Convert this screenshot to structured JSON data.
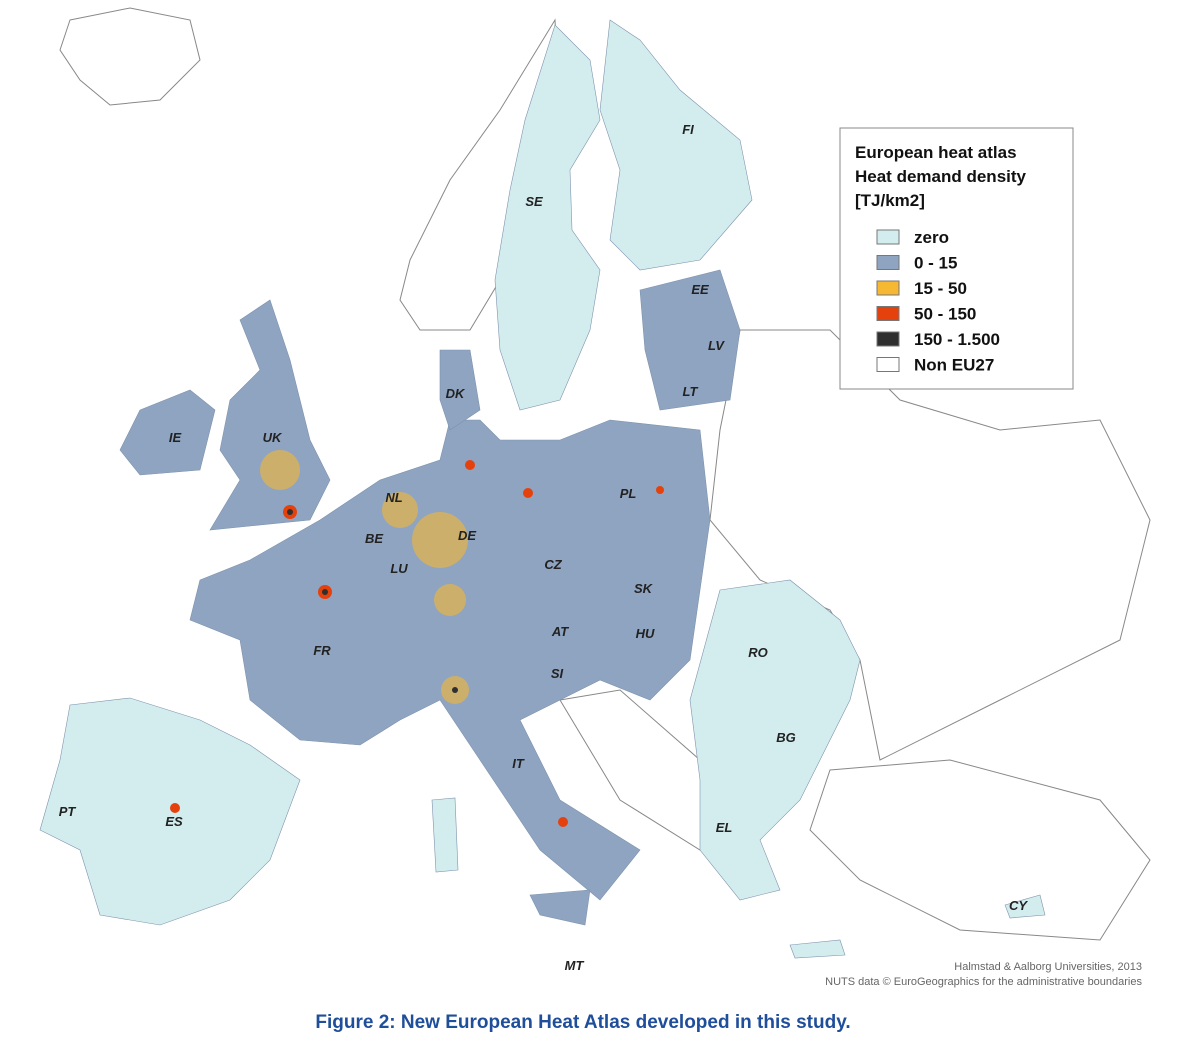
{
  "legend": {
    "title_lines": [
      "European heat atlas",
      "Heat demand density",
      "[TJ/km2]"
    ],
    "items": [
      {
        "label": "zero",
        "color": "#d3edef"
      },
      {
        "label": "0 - 15",
        "color": "#8ea4c0"
      },
      {
        "label": "15 - 50",
        "color": "#f6b733"
      },
      {
        "label": "50 - 150",
        "color": "#e5410d"
      },
      {
        "label": "150 - 1.500",
        "color": "#2f2f2f"
      },
      {
        "label": "Non EU27",
        "color": "#ffffff"
      }
    ]
  },
  "country_labels": [
    "FI",
    "SE",
    "EE",
    "LV",
    "LT",
    "DK",
    "IE",
    "UK",
    "NL",
    "BE",
    "DE",
    "LU",
    "PL",
    "CZ",
    "SK",
    "AT",
    "HU",
    "FR",
    "RO",
    "SI",
    "BG",
    "IT",
    "PT",
    "ES",
    "EL",
    "CY",
    "MT"
  ],
  "credits": [
    "Halmstad & Aalborg Universities, 2013",
    "NUTS data © EuroGeographics for the administrative boundaries"
  ],
  "caption": "Figure 2: New European Heat Atlas developed in this study."
}
